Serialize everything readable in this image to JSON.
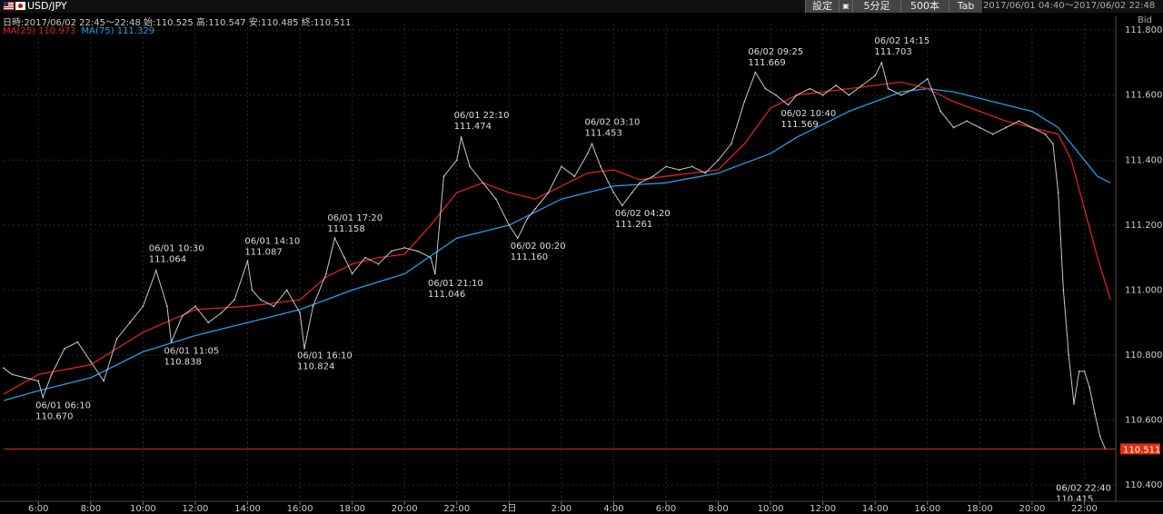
{
  "toolbar": {
    "pair": "USD/JPY",
    "settings_label": "設定",
    "menu_glyph": "▣",
    "interval_label": "5分足",
    "count_label": "500本",
    "tab_label": "Tab",
    "range_text": "2017/06/01 04:40～2017/06/02 22:48"
  },
  "info": {
    "ohlc_text": "日時:2017/06/02 22:45～22:48 始:110.525 高:110.547 安:110.485 終:110.511",
    "ma25_text": "MA(25) 110.973",
    "ma75_text": "MA(75) 111.329",
    "bid_label": "Bid"
  },
  "colors": {
    "price": "#c8c8c8",
    "ma25": "#e02020",
    "ma75": "#20a0e0",
    "current_line": "#e03010",
    "grid": "#2a2a2a"
  },
  "chart_data": {
    "type": "line",
    "ylim": [
      110.35,
      111.82
    ],
    "y_ticks": [
      111.8,
      111.6,
      111.4,
      111.2,
      111.0,
      110.8,
      110.6,
      110.4
    ],
    "y_tick_labels": [
      "111.800",
      "111.600",
      "111.400",
      "111.200",
      "111.000",
      "110.800",
      "110.600",
      "110.400"
    ],
    "x_ticks": [
      "6:00",
      "8:00",
      "10:00",
      "12:00",
      "14:00",
      "16:00",
      "18:00",
      "20:00",
      "22:00",
      "2日",
      "2:00",
      "4:00",
      "6:00",
      "8:00",
      "10:00",
      "12:00",
      "14:00",
      "16:00",
      "18:00",
      "20:00",
      "22:00"
    ],
    "x_hours": [
      6,
      8,
      10,
      12,
      14,
      16,
      18,
      20,
      22,
      24,
      26,
      28,
      30,
      32,
      34,
      36,
      38,
      40,
      42,
      44,
      46
    ],
    "xlim": [
      4.67,
      47.2
    ],
    "current_price": 110.511,
    "current_label": "110.511",
    "price_series": {
      "name": "Bid",
      "x": [
        4.67,
        5.0,
        5.5,
        6.0,
        6.17,
        6.5,
        7.0,
        7.5,
        8.0,
        8.5,
        9.0,
        9.5,
        10.0,
        10.5,
        10.92,
        11.08,
        11.5,
        12.0,
        12.5,
        13.0,
        13.5,
        14.0,
        14.17,
        14.5,
        15.0,
        15.5,
        16.0,
        16.17,
        16.5,
        17.0,
        17.33,
        17.7,
        18.0,
        18.5,
        19.0,
        19.5,
        20.0,
        20.5,
        21.0,
        21.17,
        21.5,
        22.0,
        22.17,
        22.5,
        23.0,
        23.5,
        24.0,
        24.33,
        24.7,
        25.0,
        25.5,
        26.0,
        26.5,
        27.0,
        27.17,
        27.5,
        28.0,
        28.33,
        28.7,
        29.0,
        29.5,
        30.0,
        30.5,
        31.0,
        31.5,
        32.0,
        32.5,
        33.0,
        33.42,
        33.8,
        34.2,
        34.67,
        35.0,
        35.5,
        36.0,
        36.5,
        37.0,
        37.5,
        38.0,
        38.25,
        38.5,
        39.0,
        39.5,
        40.0,
        40.5,
        41.0,
        41.5,
        42.0,
        42.5,
        43.0,
        43.5,
        44.0,
        44.5,
        44.8,
        45.0,
        45.2,
        45.4,
        45.6,
        45.8,
        46.0,
        46.2,
        46.4,
        46.6,
        46.8
      ],
      "y": [
        110.76,
        110.74,
        110.73,
        110.72,
        110.67,
        110.74,
        110.82,
        110.84,
        110.78,
        110.72,
        110.85,
        110.9,
        110.95,
        111.06,
        110.95,
        110.84,
        110.92,
        110.95,
        110.9,
        110.93,
        110.97,
        111.09,
        111.0,
        110.97,
        110.95,
        111.0,
        110.93,
        110.82,
        110.95,
        111.05,
        111.16,
        111.1,
        111.05,
        111.1,
        111.08,
        111.12,
        111.13,
        111.12,
        111.1,
        111.05,
        111.35,
        111.4,
        111.47,
        111.38,
        111.33,
        111.28,
        111.2,
        111.16,
        111.22,
        111.25,
        111.3,
        111.38,
        111.35,
        111.42,
        111.45,
        111.38,
        111.3,
        111.26,
        111.3,
        111.33,
        111.35,
        111.38,
        111.37,
        111.38,
        111.36,
        111.4,
        111.45,
        111.58,
        111.67,
        111.62,
        111.6,
        111.57,
        111.6,
        111.62,
        111.6,
        111.63,
        111.6,
        111.63,
        111.66,
        111.7,
        111.62,
        111.6,
        111.62,
        111.65,
        111.55,
        111.5,
        111.52,
        111.5,
        111.48,
        111.5,
        111.52,
        111.5,
        111.48,
        111.45,
        111.3,
        111.0,
        110.8,
        110.65,
        110.75,
        110.75,
        110.7,
        110.62,
        110.55,
        110.511
      ]
    },
    "ma25_series": {
      "name": "MA(25)",
      "x": [
        4.67,
        6,
        8,
        10,
        12,
        14,
        16,
        17,
        18,
        19,
        20,
        21,
        22,
        23,
        24,
        25,
        26,
        27,
        28,
        29,
        30,
        31,
        32,
        33,
        34,
        35,
        36,
        37,
        38,
        39,
        40,
        41,
        42,
        43,
        44,
        45,
        45.5,
        46,
        46.5,
        47
      ],
      "y": [
        110.68,
        110.74,
        110.77,
        110.87,
        110.94,
        110.95,
        110.97,
        111.04,
        111.08,
        111.1,
        111.11,
        111.2,
        111.3,
        111.33,
        111.3,
        111.28,
        111.32,
        111.36,
        111.37,
        111.34,
        111.35,
        111.36,
        111.37,
        111.45,
        111.56,
        111.6,
        111.61,
        111.62,
        111.63,
        111.64,
        111.62,
        111.58,
        111.55,
        111.52,
        111.5,
        111.48,
        111.4,
        111.25,
        111.1,
        110.97
      ]
    },
    "ma75_series": {
      "name": "MA(75)",
      "x": [
        4.67,
        6,
        8,
        10,
        12,
        14,
        16,
        18,
        20,
        22,
        24,
        26,
        28,
        30,
        32,
        34,
        35,
        36,
        37,
        38,
        39,
        40,
        41,
        42,
        43,
        44,
        45,
        45.5,
        46,
        46.5,
        47
      ],
      "y": [
        110.66,
        110.69,
        110.73,
        110.81,
        110.86,
        110.9,
        110.94,
        111.0,
        111.05,
        111.16,
        111.2,
        111.28,
        111.32,
        111.33,
        111.36,
        111.42,
        111.47,
        111.51,
        111.55,
        111.58,
        111.61,
        111.62,
        111.61,
        111.59,
        111.57,
        111.55,
        111.5,
        111.45,
        111.4,
        111.35,
        111.33
      ]
    },
    "annotations": [
      {
        "time": "06/01 06:10",
        "value": "110.670",
        "x": 6.17,
        "y": 110.67,
        "side": "below"
      },
      {
        "time": "06/01 10:30",
        "value": "111.064",
        "x": 10.5,
        "y": 111.064,
        "side": "above"
      },
      {
        "time": "06/01 11:05",
        "value": "110.838",
        "x": 11.08,
        "y": 110.838,
        "side": "below"
      },
      {
        "time": "06/01 14:10",
        "value": "111.087",
        "x": 14.17,
        "y": 111.087,
        "side": "above"
      },
      {
        "time": "06/01 16:10",
        "value": "110.824",
        "x": 16.17,
        "y": 110.824,
        "side": "below"
      },
      {
        "time": "06/01 17:20",
        "value": "111.158",
        "x": 17.33,
        "y": 111.158,
        "side": "above"
      },
      {
        "time": "06/01 21:10",
        "value": "111.046",
        "x": 21.17,
        "y": 111.046,
        "side": "below"
      },
      {
        "time": "06/01 22:10",
        "value": "111.474",
        "x": 22.17,
        "y": 111.474,
        "side": "above"
      },
      {
        "time": "06/02 00:20",
        "value": "111.160",
        "x": 24.33,
        "y": 111.16,
        "side": "below"
      },
      {
        "time": "06/02 03:10",
        "value": "111.453",
        "x": 27.17,
        "y": 111.453,
        "side": "above"
      },
      {
        "time": "06/02 04:20",
        "value": "111.261",
        "x": 28.33,
        "y": 111.261,
        "side": "below"
      },
      {
        "time": "06/02 09:25",
        "value": "111.669",
        "x": 33.42,
        "y": 111.669,
        "side": "above"
      },
      {
        "time": "06/02 10:40",
        "value": "111.569",
        "x": 34.67,
        "y": 111.569,
        "side": "below"
      },
      {
        "time": "06/02 14:15",
        "value": "111.703",
        "x": 38.25,
        "y": 111.703,
        "side": "above"
      },
      {
        "time": "06/02 22:40",
        "value": "110.415",
        "x": 46.67,
        "y": 110.415,
        "side": "below"
      }
    ]
  }
}
